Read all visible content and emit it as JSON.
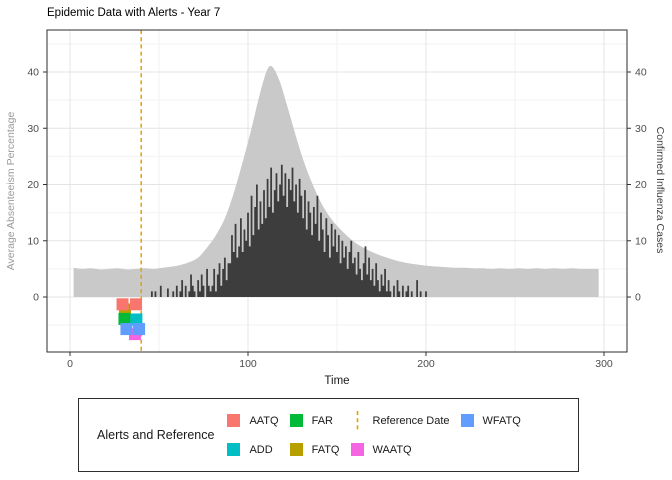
{
  "title": "Epidemic Data with Alerts - Year 7",
  "axes": {
    "left": {
      "title": "Average Absenteeism Percentage",
      "ticks": [
        0,
        10,
        20,
        30,
        40
      ],
      "title_color": "#9a9a9a"
    },
    "right": {
      "title": "Confirmed Influenza Cases",
      "ticks": [
        0,
        10,
        20,
        30,
        40
      ],
      "title_color": "#3d3d3d"
    },
    "bottom": {
      "title": "Time",
      "ticks": [
        0,
        100,
        200,
        300
      ]
    }
  },
  "legend": {
    "title": "Alerts and Reference",
    "items": [
      {
        "label": "AATQ",
        "color": "#F8766D",
        "type": "square"
      },
      {
        "label": "ADD",
        "color": "#00BFC4",
        "type": "square"
      },
      {
        "label": "FAR",
        "color": "#00BA38",
        "type": "square"
      },
      {
        "label": "FATQ",
        "color": "#B79F00",
        "type": "square"
      },
      {
        "label": "Reference Date",
        "color": "#E69F00",
        "type": "dashed-line"
      },
      {
        "label": "WAATQ",
        "color": "#F564E2",
        "type": "square"
      },
      {
        "label": "WFATQ",
        "color": "#619CFF",
        "type": "square"
      }
    ]
  },
  "chart_data": {
    "type": "area",
    "title": "Epidemic Data with Alerts - Year 7",
    "xlabel": "Time",
    "ylabel_left": "Average Absenteeism Percentage",
    "ylabel_right": "Confirmed Influenza Cases",
    "xlim": [
      -13,
      313
    ],
    "ylim": [
      -9.8,
      47.5
    ],
    "grid": {
      "x_major": [
        0,
        100,
        200,
        300
      ],
      "x_minor": [
        50,
        150,
        250
      ],
      "y_major": [
        0,
        10,
        20,
        30,
        40
      ],
      "y_minor": [
        -5,
        5,
        15,
        25,
        35,
        45
      ]
    },
    "legend_position": "bottom",
    "reference_line": {
      "x": 40,
      "label": "Reference Date",
      "color": "#E69F00",
      "style": "dashed"
    },
    "series": [
      {
        "name": "Average Absenteeism Percentage",
        "render": "smooth-area",
        "color": "#C9C9C9",
        "t_start": 2,
        "step": 5,
        "values": [
          5.2,
          5.0,
          5.1,
          4.9,
          5.0,
          5.1,
          4.9,
          5.0,
          5.1,
          5.0,
          5.2,
          5.4,
          5.7,
          6.2,
          7.0,
          8.8,
          11.0,
          14.0,
          18.5,
          24.0,
          30.0,
          36.5,
          41.0,
          39.0,
          34.0,
          28.5,
          23.5,
          19.5,
          16.2,
          13.8,
          12.0,
          10.5,
          9.3,
          8.4,
          7.7,
          7.1,
          6.6,
          6.2,
          5.9,
          5.7,
          5.5,
          5.4,
          5.3,
          5.2,
          5.2,
          5.1,
          5.1,
          5.0,
          5.1,
          5.0,
          5.1,
          5.0,
          5.1,
          5.0,
          5.1,
          5.0,
          5.1,
          5.0,
          5.0,
          5.0
        ]
      },
      {
        "name": "Confirmed Influenza Cases",
        "render": "bars",
        "color": "#3d3d3d",
        "t_start": 45,
        "step": 1,
        "values": [
          0,
          1,
          0,
          1,
          0,
          0,
          2,
          0,
          0,
          0,
          1.5,
          0,
          0,
          1,
          0,
          2,
          0,
          1,
          3,
          0,
          2,
          0,
          1,
          4,
          2,
          1,
          0,
          3,
          1,
          4,
          2,
          0,
          5,
          2,
          1,
          2,
          5,
          1,
          4,
          6,
          2,
          5,
          7,
          3,
          6,
          6,
          11,
          8,
          13,
          7,
          9,
          14,
          8,
          12,
          10,
          15,
          9,
          18,
          11,
          16,
          20,
          12,
          17,
          13,
          19,
          14,
          21,
          16,
          23,
          15,
          19,
          22,
          17,
          20,
          23.5,
          18,
          22,
          16,
          21,
          19,
          23,
          17,
          20,
          15,
          21,
          18,
          14,
          19,
          12,
          17,
          15,
          11,
          16,
          13,
          18,
          10,
          15,
          12,
          8,
          14,
          11,
          7,
          13,
          9,
          12,
          8,
          11,
          6,
          10,
          7,
          9,
          5,
          8,
          10,
          6,
          7,
          4,
          8,
          5,
          3,
          6,
          9,
          4,
          7,
          3,
          5,
          2,
          6,
          3,
          1,
          4,
          2,
          5,
          1,
          3,
          1,
          0,
          2,
          0,
          3,
          1,
          0,
          2,
          0,
          1,
          2,
          0,
          1,
          0,
          0,
          3,
          0,
          1,
          0,
          0,
          1
        ]
      }
    ],
    "alerts": [
      {
        "name": "FATQ",
        "color": "#B79F00",
        "y": -2.2,
        "points": [
          30.9
        ]
      },
      {
        "name": "FAR",
        "color": "#00BA38",
        "y": -3.9,
        "points": [
          30.6
        ]
      },
      {
        "name": "ADD",
        "color": "#00BFC4",
        "y": -4.0,
        "points": [
          37.3
        ]
      },
      {
        "name": "AATQ",
        "color": "#F8766D",
        "y": -1.3,
        "points": [
          29.5,
          37.1
        ]
      },
      {
        "name": "WAATQ",
        "color": "#F564E2",
        "y": -6.6,
        "points": [
          36.5
        ]
      },
      {
        "name": "WFATQ",
        "color": "#619CFF",
        "y": -5.7,
        "points": [
          31.7,
          38.8
        ]
      }
    ]
  }
}
